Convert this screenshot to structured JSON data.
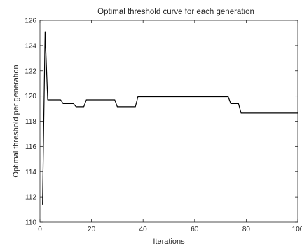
{
  "chart_data": {
    "type": "line",
    "title": "Optimal threshold curve for each generation",
    "xlabel": "Iterations",
    "ylabel": "Optimal threshold per generation",
    "xlim": [
      0,
      100
    ],
    "ylim": [
      110,
      126
    ],
    "xticks": [
      0,
      20,
      40,
      60,
      80,
      100
    ],
    "yticks": [
      110,
      112,
      114,
      116,
      118,
      120,
      122,
      124,
      126
    ],
    "grid": false,
    "series": [
      {
        "color": "#000000",
        "x": [
          1,
          2,
          3,
          4,
          5,
          6,
          7,
          8,
          9,
          10,
          11,
          12,
          13,
          14,
          15,
          16,
          17,
          18,
          19,
          20,
          21,
          22,
          23,
          24,
          25,
          26,
          27,
          28,
          29,
          30,
          31,
          32,
          33,
          34,
          35,
          36,
          37,
          38,
          39,
          40,
          41,
          42,
          43,
          44,
          45,
          46,
          47,
          48,
          49,
          50,
          51,
          52,
          53,
          54,
          55,
          56,
          57,
          58,
          59,
          60,
          61,
          62,
          63,
          64,
          65,
          66,
          67,
          68,
          69,
          70,
          71,
          72,
          73,
          74,
          75,
          76,
          77,
          78,
          79,
          80,
          81,
          82,
          83,
          84,
          85,
          86,
          87,
          88,
          89,
          90,
          91,
          92,
          93,
          94,
          95,
          96,
          97,
          98,
          99,
          100
        ],
        "y": [
          111.4,
          125.1,
          119.7,
          119.7,
          119.7,
          119.7,
          119.7,
          119.7,
          119.4,
          119.4,
          119.4,
          119.4,
          119.4,
          119.15,
          119.15,
          119.15,
          119.15,
          119.7,
          119.7,
          119.7,
          119.7,
          119.7,
          119.7,
          119.7,
          119.7,
          119.7,
          119.7,
          119.7,
          119.7,
          119.15,
          119.15,
          119.15,
          119.15,
          119.15,
          119.15,
          119.15,
          119.15,
          119.95,
          119.95,
          119.95,
          119.95,
          119.95,
          119.95,
          119.95,
          119.95,
          119.95,
          119.95,
          119.95,
          119.95,
          119.95,
          119.95,
          119.95,
          119.95,
          119.95,
          119.95,
          119.95,
          119.95,
          119.95,
          119.95,
          119.95,
          119.95,
          119.95,
          119.95,
          119.95,
          119.95,
          119.95,
          119.95,
          119.95,
          119.95,
          119.95,
          119.95,
          119.95,
          119.95,
          119.4,
          119.4,
          119.4,
          119.4,
          118.65,
          118.65,
          118.65,
          118.65,
          118.65,
          118.65,
          118.65,
          118.65,
          118.65,
          118.65,
          118.65,
          118.65,
          118.65,
          118.65,
          118.65,
          118.65,
          118.65,
          118.65,
          118.65,
          118.65,
          118.65,
          118.65,
          118.65
        ]
      }
    ]
  }
}
